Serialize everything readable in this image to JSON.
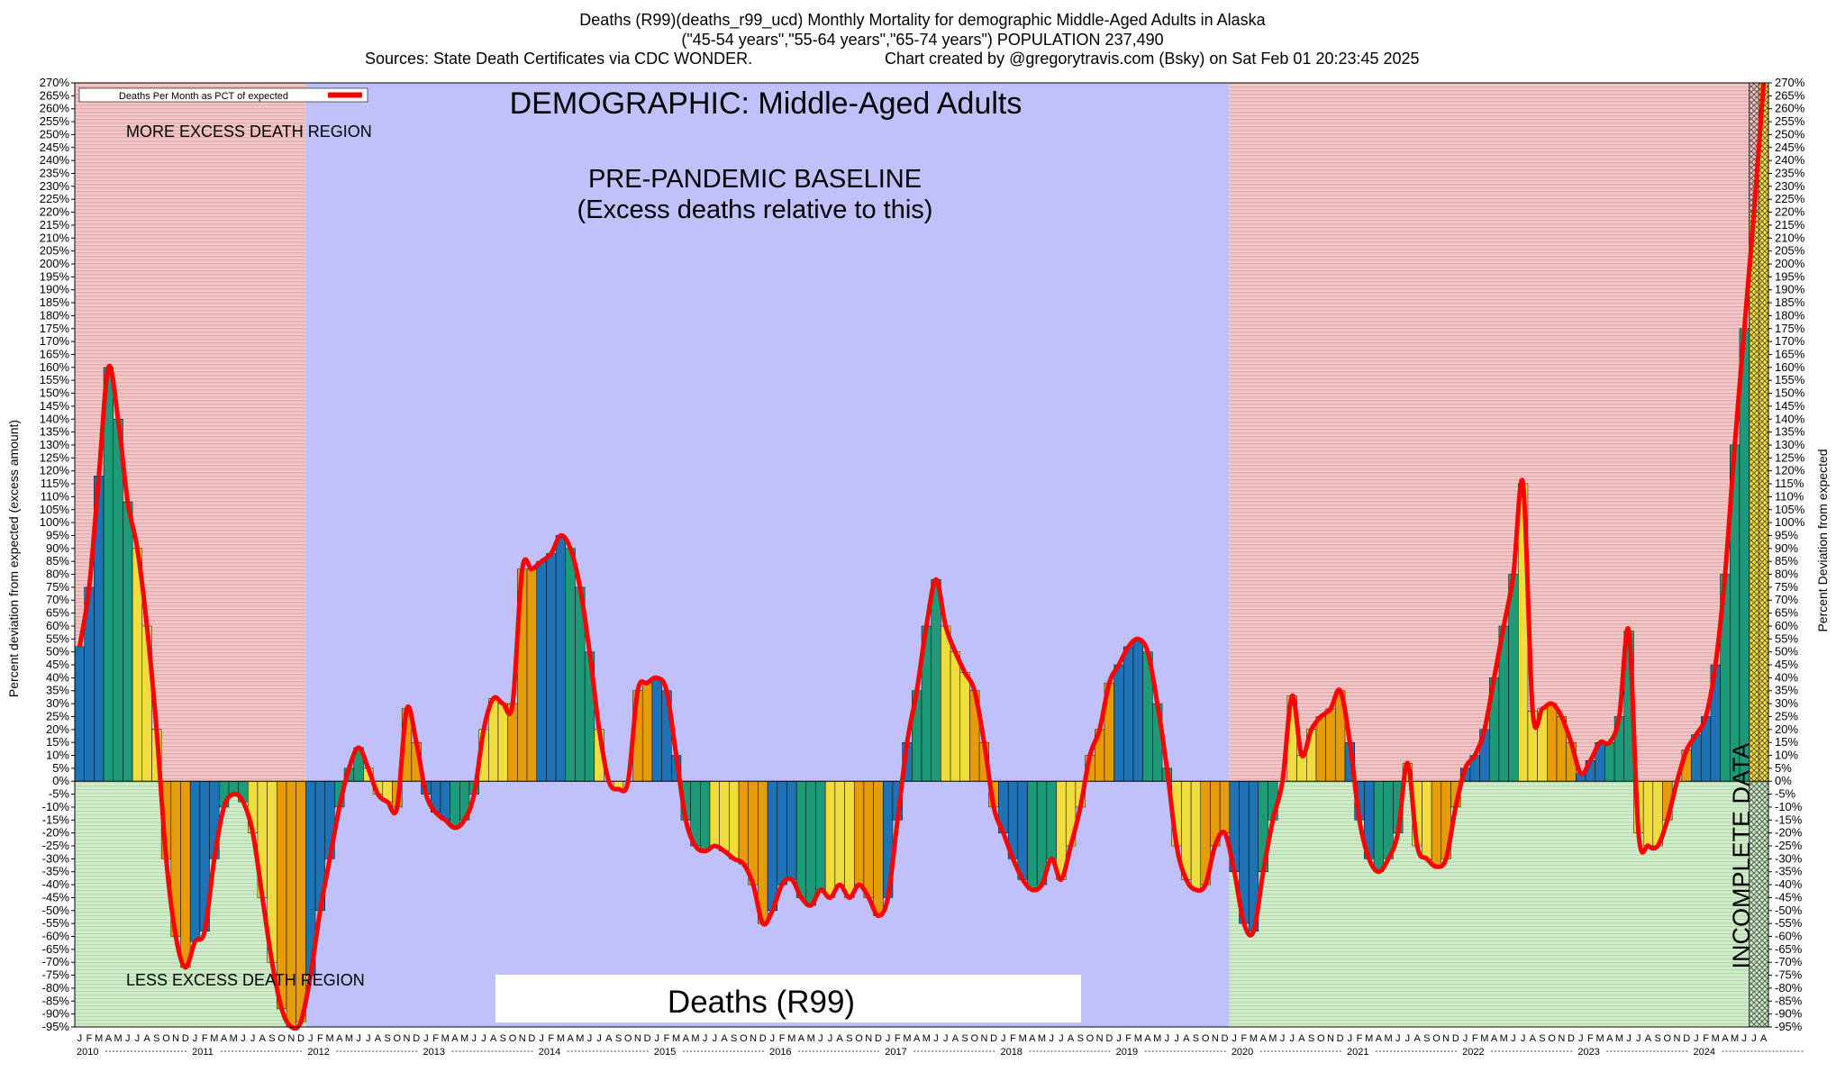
{
  "header": {
    "line1": "Deaths (R99)(deaths_r99_ucd) Monthly Mortality for demographic Middle-Aged Adults in Alaska",
    "line2": "(\"45-54 years\",\"55-64 years\",\"65-74 years\") POPULATION 237,490",
    "line3_left": "Sources: State Death Certificates via CDC WONDER.",
    "line3_right": "Chart created by @gregorytravis.com (Bsky) on Sat Feb 01 20:23:45 2025"
  },
  "annotations": {
    "demographic": "DEMOGRAPHIC: Middle-Aged Adults",
    "baseline_1": "PRE-PANDEMIC BASELINE",
    "baseline_2": "(Excess deaths relative to this)",
    "more_region": "MORE EXCESS DEATH REGION",
    "less_region": "LESS EXCESS DEATH REGION",
    "incomplete": "INCOMPLETE DATA",
    "cause_box": "Deaths (R99)"
  },
  "legend": {
    "label": "Deaths Per Month as PCT of expected"
  },
  "axes": {
    "y_left_label": "Percent deviation from expected (excess amount)",
    "y_right_label": "Percent Deviation from expected"
  },
  "colors": {
    "line": "#ff0000",
    "baseline_bg": "#c0c0fa",
    "excess_bg": "#f0c8c8",
    "less_bg": "#cde8c8",
    "bar_colors": [
      "#1e73b4",
      "#1e9a78",
      "#f0dc3c",
      "#e69b0a"
    ]
  },
  "chart_data": {
    "type": "bar",
    "title": "Deaths (R99)(deaths_r99_ucd) Monthly Mortality for demographic Middle-Aged Adults in Alaska",
    "ylabel": "Percent deviation from expected (excess amount)",
    "y2label": "Percent Deviation from expected",
    "ylim": [
      -95,
      270
    ],
    "y_tick_step": 5,
    "grid": false,
    "legend_position": "top-left",
    "x_start": "2010-01",
    "month_letters": [
      "J",
      "F",
      "M",
      "A",
      "M",
      "J",
      "J",
      "A",
      "S",
      "O",
      "N",
      "D"
    ],
    "years": [
      "2010",
      "2011",
      "2012",
      "2013",
      "2014",
      "2015",
      "2016",
      "2017",
      "2018",
      "2019",
      "2020",
      "2021",
      "2022",
      "2023",
      "2024"
    ],
    "series": [
      {
        "name": "Deaths Per Month as PCT of expected",
        "values": [
          52,
          75,
          118,
          160,
          140,
          108,
          90,
          60,
          20,
          -30,
          -60,
          -72,
          -62,
          -58,
          -30,
          -10,
          -5,
          -8,
          -20,
          -45,
          -70,
          -88,
          -95,
          -93,
          -75,
          -50,
          -30,
          -10,
          5,
          13,
          5,
          -5,
          -8,
          -10,
          28,
          15,
          -5,
          -12,
          -15,
          -18,
          -15,
          -5,
          20,
          32,
          30,
          30,
          82,
          82,
          85,
          88,
          95,
          90,
          75,
          50,
          20,
          0,
          -3,
          0,
          35,
          38,
          40,
          35,
          10,
          -15,
          -25,
          -27,
          -25,
          -27,
          -30,
          -32,
          -40,
          -55,
          -50,
          -40,
          -38,
          -45,
          -48,
          -42,
          -45,
          -40,
          -45,
          -40,
          -45,
          -52,
          -45,
          -15,
          15,
          35,
          60,
          78,
          60,
          50,
          42,
          35,
          15,
          -10,
          -20,
          -30,
          -38,
          -42,
          -40,
          -30,
          -38,
          -25,
          -10,
          10,
          20,
          38,
          45,
          52,
          55,
          50,
          30,
          5,
          -25,
          -38,
          -42,
          -40,
          -25,
          -20,
          -35,
          -55,
          -58,
          -35,
          -15,
          0,
          33,
          10,
          20,
          25,
          28,
          35,
          15,
          -15,
          -30,
          -35,
          -30,
          -20,
          7,
          -25,
          -30,
          -33,
          -30,
          -10,
          5,
          10,
          20,
          40,
          60,
          80,
          115,
          27,
          28,
          30,
          25,
          15,
          3,
          8,
          15,
          15,
          25,
          58,
          -20,
          -25,
          -25,
          -15,
          0,
          12,
          18,
          25,
          45,
          80,
          130,
          175,
          220,
          270
        ]
      }
    ],
    "incomplete_from": "2024-07"
  }
}
